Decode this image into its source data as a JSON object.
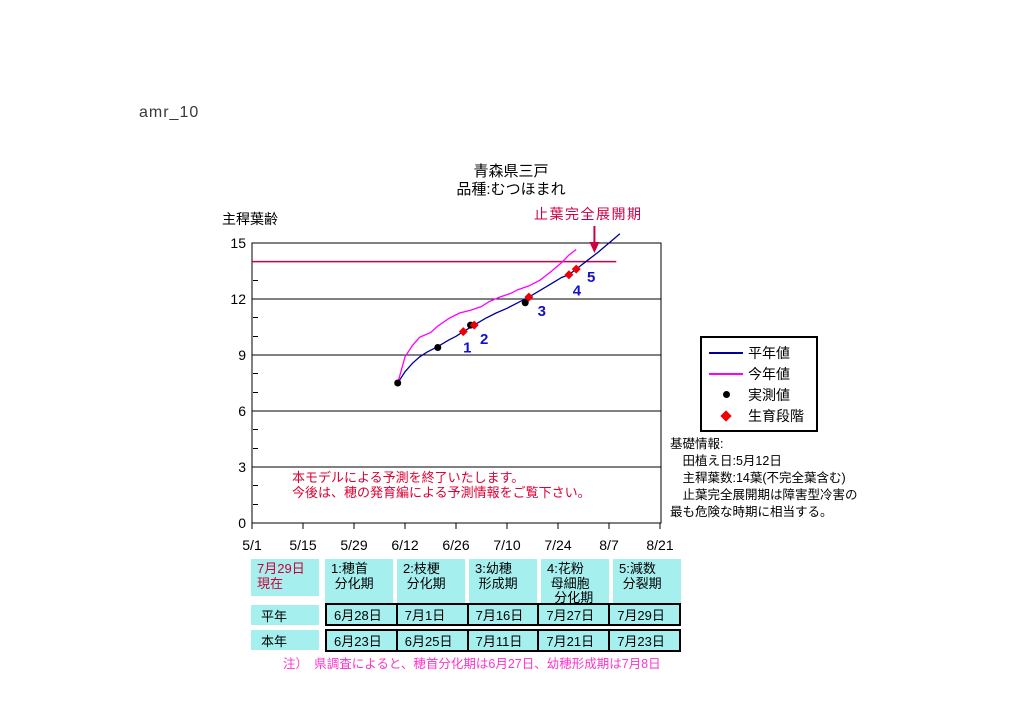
{
  "page": {
    "tag": "amr_10"
  },
  "chart_data": {
    "type": "line",
    "title": "青森県三戸",
    "subtitle": "品種:むつほまれ",
    "ylabel": "主稈葉齢",
    "ylim": [
      0,
      15
    ],
    "y_ticks": [
      0,
      3,
      6,
      9,
      12,
      15
    ],
    "x_ticks": [
      "5/1",
      "5/15",
      "5/29",
      "6/12",
      "6/26",
      "7/10",
      "7/24",
      "8/7",
      "8/21"
    ],
    "grid": "horizontal",
    "legend_position": "right",
    "reference_line": {
      "value": 14,
      "start": "5/1",
      "end": "8/9",
      "color": "#cc0044"
    },
    "annotation": {
      "text": "止葉完全展開期",
      "arrow_date": "8/3",
      "color": "#cc0044"
    },
    "message": {
      "line1": "本モデルによる予測を終了いたします。",
      "line2": "今後は、穂の発育編による予測情報をご覧下さい。"
    },
    "legend": [
      {
        "label": "平年値",
        "marker": "line",
        "color": "#000099"
      },
      {
        "label": "今年値",
        "marker": "line",
        "color": "#ff00ff"
      },
      {
        "label": "実測値",
        "marker": "dot",
        "color": "#000000"
      },
      {
        "label": "生育段階",
        "marker": "diamond",
        "color": "#ee0000"
      }
    ],
    "series": [
      {
        "id": "heinen",
        "name": "平年値",
        "kind": "line",
        "color": "#000099",
        "points": [
          [
            "6/10",
            7.5
          ],
          [
            "6/12",
            8.1
          ],
          [
            "6/14",
            8.55
          ],
          [
            "6/16",
            8.9
          ],
          [
            "6/18",
            9.15
          ],
          [
            "6/21",
            9.45
          ],
          [
            "6/24",
            9.8
          ],
          [
            "6/26",
            10.0
          ],
          [
            "6/28",
            10.25
          ],
          [
            "7/1",
            10.6
          ],
          [
            "7/4",
            10.95
          ],
          [
            "7/7",
            11.25
          ],
          [
            "7/10",
            11.5
          ],
          [
            "7/13",
            11.8
          ],
          [
            "7/16",
            12.1
          ],
          [
            "7/19",
            12.45
          ],
          [
            "7/22",
            12.8
          ],
          [
            "7/25",
            13.15
          ],
          [
            "7/27",
            13.3
          ],
          [
            "7/29",
            13.6
          ],
          [
            "8/1",
            14.05
          ],
          [
            "8/4",
            14.5
          ],
          [
            "8/7",
            15.0
          ],
          [
            "8/10",
            15.5
          ]
        ]
      },
      {
        "id": "konen",
        "name": "今年値",
        "kind": "line",
        "color": "#ff00ff",
        "points": [
          [
            "6/10",
            7.5
          ],
          [
            "6/11",
            8.2
          ],
          [
            "6/12",
            8.9
          ],
          [
            "6/14",
            9.5
          ],
          [
            "6/16",
            9.95
          ],
          [
            "6/19",
            10.2
          ],
          [
            "6/21",
            10.55
          ],
          [
            "6/24",
            10.95
          ],
          [
            "6/27",
            11.25
          ],
          [
            "6/30",
            11.4
          ],
          [
            "7/3",
            11.6
          ],
          [
            "7/5",
            11.85
          ],
          [
            "7/8",
            12.1
          ],
          [
            "7/11",
            12.3
          ],
          [
            "7/13",
            12.5
          ],
          [
            "7/16",
            12.7
          ],
          [
            "7/19",
            13.0
          ],
          [
            "7/22",
            13.45
          ],
          [
            "7/25",
            13.95
          ],
          [
            "7/27",
            14.35
          ],
          [
            "7/29",
            14.65
          ]
        ]
      },
      {
        "id": "jissoku",
        "name": "実測値",
        "kind": "scatter",
        "marker": "dot",
        "color": "#000000",
        "points": [
          [
            "6/10",
            7.5
          ],
          [
            "6/21",
            9.4
          ],
          [
            "6/30",
            10.6
          ],
          [
            "7/15",
            11.8
          ]
        ]
      },
      {
        "id": "seiiku",
        "name": "生育段階",
        "kind": "scatter",
        "marker": "diamond",
        "color": "#ee0000",
        "labels": [
          "1",
          "2",
          "3",
          "4",
          "5"
        ],
        "points": [
          [
            "6/28",
            10.25
          ],
          [
            "7/1",
            10.6
          ],
          [
            "7/16",
            12.1
          ],
          [
            "7/27",
            13.3
          ],
          [
            "7/29",
            13.6
          ]
        ]
      }
    ]
  },
  "info": {
    "text": "基礎情報:\n　田植え日:5月12日\n　主稈葉数:14葉(不完全葉含む)\n　止葉完全展開期は障害型冷害の\n最も危険な時期に相当する。"
  },
  "table": {
    "current_date": "7月29日\n現在",
    "columns": [
      "1:穂首\n 分化期",
      "2:枝梗\n 分化期",
      "3:幼穂\n 形成期",
      "4:花粉\n 母細胞\n  分化期",
      "5:減数\n 分裂期"
    ],
    "rows": [
      {
        "label": "平年",
        "values": [
          "6月28日",
          "7月1日",
          "7月16日",
          "7月27日",
          "7月29日"
        ]
      },
      {
        "label": "本年",
        "values": [
          "6月23日",
          "6月25日",
          "7月11日",
          "7月21日",
          "7月23日"
        ]
      }
    ]
  },
  "note": "注）　県調査によると、穂首分化期は6月27日、幼穂形成期は7月8日"
}
